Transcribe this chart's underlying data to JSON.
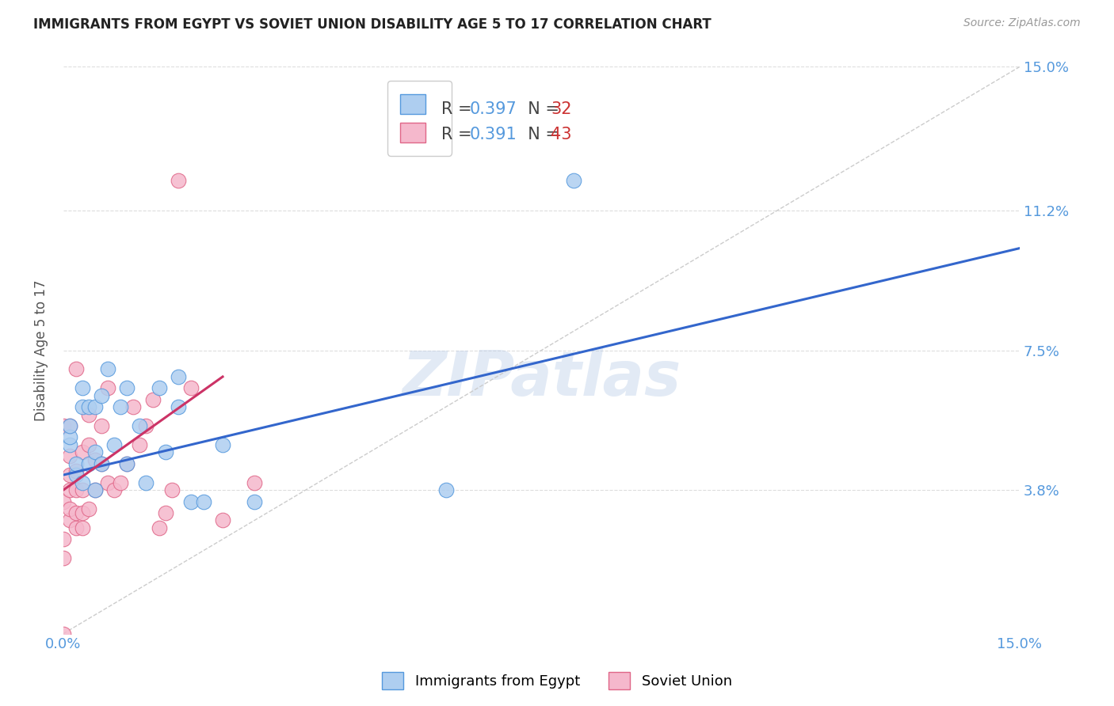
{
  "title": "IMMIGRANTS FROM EGYPT VS SOVIET UNION DISABILITY AGE 5 TO 17 CORRELATION CHART",
  "source": "Source: ZipAtlas.com",
  "ylabel": "Disability Age 5 to 17",
  "xlim": [
    0.0,
    0.15
  ],
  "ylim": [
    0.0,
    0.15
  ],
  "ytick_vals": [
    0.038,
    0.075,
    0.112,
    0.15
  ],
  "ytick_labels": [
    "3.8%",
    "7.5%",
    "11.2%",
    "15.0%"
  ],
  "xtick_vals": [
    0.0,
    0.15
  ],
  "xtick_labels": [
    "0.0%",
    "15.0%"
  ],
  "egypt_color": "#aecef0",
  "egypt_edge": "#5599dd",
  "soviet_color": "#f5b8cc",
  "soviet_edge": "#e06688",
  "egypt_line_color": "#3366cc",
  "soviet_line_color": "#cc3366",
  "diagonal_color": "#cccccc",
  "R_egypt": 0.397,
  "N_egypt": 32,
  "R_soviet": 0.391,
  "N_soviet": 43,
  "egypt_x": [
    0.001,
    0.001,
    0.001,
    0.002,
    0.002,
    0.003,
    0.003,
    0.003,
    0.004,
    0.004,
    0.005,
    0.005,
    0.005,
    0.006,
    0.006,
    0.007,
    0.008,
    0.009,
    0.01,
    0.01,
    0.012,
    0.013,
    0.015,
    0.016,
    0.018,
    0.018,
    0.02,
    0.022,
    0.025,
    0.03,
    0.06,
    0.08
  ],
  "egypt_y": [
    0.05,
    0.052,
    0.055,
    0.042,
    0.045,
    0.04,
    0.06,
    0.065,
    0.045,
    0.06,
    0.038,
    0.048,
    0.06,
    0.045,
    0.063,
    0.07,
    0.05,
    0.06,
    0.045,
    0.065,
    0.055,
    0.04,
    0.065,
    0.048,
    0.06,
    0.068,
    0.035,
    0.035,
    0.05,
    0.035,
    0.038,
    0.12
  ],
  "soviet_x": [
    0.0,
    0.0,
    0.0,
    0.0,
    0.0,
    0.001,
    0.001,
    0.001,
    0.001,
    0.001,
    0.001,
    0.002,
    0.002,
    0.002,
    0.002,
    0.002,
    0.003,
    0.003,
    0.003,
    0.003,
    0.004,
    0.004,
    0.004,
    0.005,
    0.005,
    0.006,
    0.006,
    0.007,
    0.007,
    0.008,
    0.009,
    0.01,
    0.011,
    0.012,
    0.013,
    0.014,
    0.015,
    0.016,
    0.017,
    0.018,
    0.02,
    0.025,
    0.03
  ],
  "soviet_y": [
    0.0,
    0.02,
    0.025,
    0.035,
    0.055,
    0.03,
    0.033,
    0.038,
    0.042,
    0.047,
    0.055,
    0.028,
    0.032,
    0.038,
    0.043,
    0.07,
    0.028,
    0.032,
    0.038,
    0.048,
    0.033,
    0.05,
    0.058,
    0.038,
    0.046,
    0.045,
    0.055,
    0.04,
    0.065,
    0.038,
    0.04,
    0.045,
    0.06,
    0.05,
    0.055,
    0.062,
    0.028,
    0.032,
    0.038,
    0.12,
    0.065,
    0.03,
    0.04
  ],
  "egypt_line_x": [
    0.0,
    0.15
  ],
  "egypt_line_y": [
    0.042,
    0.102
  ],
  "soviet_line_x": [
    0.0,
    0.025
  ],
  "soviet_line_y": [
    0.038,
    0.068
  ],
  "background_color": "#ffffff",
  "watermark_text": "ZIPatlas",
  "watermark_color": "#b8cce8",
  "watermark_alpha": 0.4,
  "grid_color": "#dddddd",
  "tick_color": "#5599dd",
  "title_color": "#222222",
  "source_color": "#999999",
  "ylabel_color": "#555555"
}
